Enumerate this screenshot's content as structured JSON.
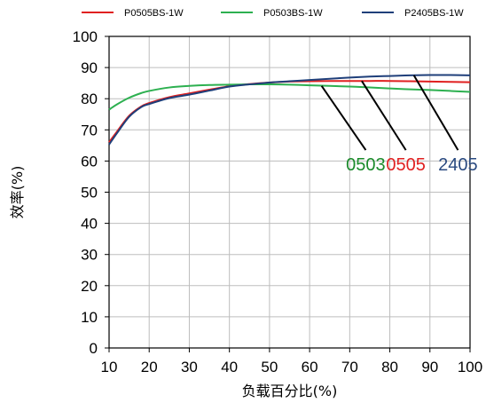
{
  "chart_data": {
    "type": "line",
    "xlabel": "负载百分比(%)",
    "ylabel": "效率(%)",
    "xlim": [
      10,
      100
    ],
    "ylim": [
      0,
      100
    ],
    "xticks": [
      10,
      20,
      30,
      40,
      50,
      60,
      70,
      80,
      90,
      100
    ],
    "yticks": [
      0,
      10,
      20,
      30,
      40,
      50,
      60,
      70,
      80,
      90,
      100
    ],
    "grid": true,
    "legend_position": "top",
    "series": [
      {
        "name": "P0505BS-1W",
        "color": "#e02020",
        "x": [
          10,
          12,
          15,
          18,
          20,
          25,
          30,
          35,
          40,
          45,
          50,
          55,
          60,
          65,
          70,
          75,
          80,
          85,
          90,
          95,
          100
        ],
        "y": [
          66,
          69.5,
          74.5,
          77.5,
          78.6,
          80.5,
          81.7,
          82.9,
          84.0,
          84.7,
          85.2,
          85.5,
          85.6,
          85.7,
          85.7,
          85.7,
          85.7,
          85.6,
          85.5,
          85.4,
          85.3
        ]
      },
      {
        "name": "P0503BS-1W",
        "color": "#2db050",
        "x": [
          10,
          12,
          15,
          18,
          20,
          25,
          30,
          35,
          40,
          45,
          50,
          55,
          60,
          65,
          70,
          75,
          80,
          85,
          90,
          95,
          100
        ],
        "y": [
          76.5,
          78.2,
          80.3,
          81.8,
          82.5,
          83.6,
          84.1,
          84.4,
          84.5,
          84.6,
          84.6,
          84.5,
          84.3,
          84.1,
          83.9,
          83.6,
          83.3,
          83.0,
          82.8,
          82.5,
          82.2
        ]
      },
      {
        "name": "P2405BS-1W",
        "color": "#1f3f7a",
        "x": [
          10,
          12,
          15,
          18,
          20,
          25,
          30,
          35,
          40,
          45,
          50,
          55,
          60,
          65,
          70,
          75,
          80,
          85,
          90,
          95,
          100
        ],
        "y": [
          65.3,
          69.0,
          74.2,
          77.3,
          78.3,
          80.2,
          81.3,
          82.6,
          83.9,
          84.6,
          85.2,
          85.6,
          86.0,
          86.4,
          86.8,
          87.1,
          87.3,
          87.5,
          87.6,
          87.6,
          87.5
        ]
      }
    ],
    "annotations": [
      {
        "text": "0503",
        "color": "#1a8a2a",
        "line_from": [
          63,
          84.1
        ],
        "line_to": [
          74,
          63.5
        ]
      },
      {
        "text": "0505",
        "color": "#e02020",
        "line_from": [
          73,
          85.7
        ],
        "line_to": [
          84,
          63.5
        ]
      },
      {
        "text": "2405",
        "color": "#2a4a80",
        "line_from": [
          86,
          87.5
        ],
        "line_to": [
          97,
          63.5
        ]
      }
    ]
  }
}
